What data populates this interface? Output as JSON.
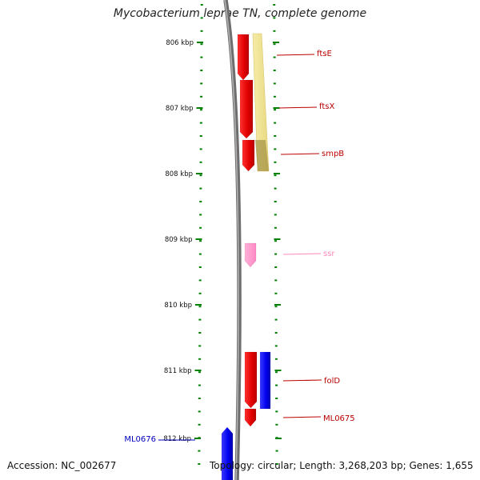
{
  "title": "Mycobacterium leprae TN, complete genome",
  "ruler": {
    "labels": [
      "806 kbp",
      "807 kbp",
      "808 kbp",
      "809 kbp",
      "810 kbp",
      "811 kbp",
      "812 kbp"
    ]
  },
  "genes": [
    {
      "name": "ftsE",
      "strand": "+",
      "color": "#ee0000"
    },
    {
      "name": "ftsX",
      "strand": "+",
      "color": "#ee0000"
    },
    {
      "name": "smpB",
      "strand": "+",
      "color": "#ee0000"
    },
    {
      "name": "ssr",
      "strand": "+",
      "color": "#ff99cc"
    },
    {
      "name": "folD",
      "strand": "+",
      "color": "#ee0000"
    },
    {
      "name": "ML0675",
      "strand": "+",
      "color": "#ee0000"
    },
    {
      "name": "ML0676",
      "strand": "-",
      "color": "#0000ee"
    }
  ],
  "footer": {
    "accession": "Accession: NC_002677",
    "summary": "Topology: circular; Length: 3,268,203 bp; Genes: 1,655"
  },
  "colors": {
    "tick": "#008000",
    "genome_arc": "#808080",
    "plus_strand": "#ee0000",
    "minus_strand": "#0000ee",
    "rna": "#ff99cc",
    "operon_band": "#f0e08a",
    "plus_label": "#bb0000",
    "minus_label": "#0000bb"
  }
}
